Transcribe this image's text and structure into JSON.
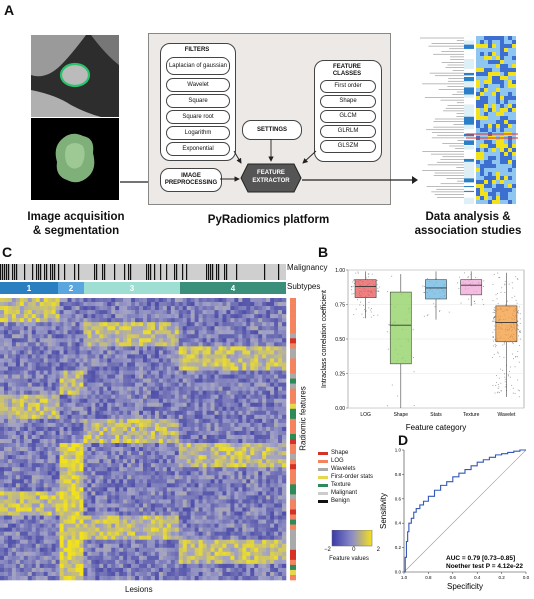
{
  "panel_letters": {
    "a": "A",
    "b": "B",
    "c": "C",
    "d": "D"
  },
  "panel_a": {
    "image_caption": [
      "Image acquisition",
      "& segmentation"
    ],
    "platform_caption": "PyRadiomics platform",
    "analysis_caption": [
      "Data analysis &",
      "association studies"
    ],
    "filters_title": "FILTERS",
    "filters": [
      "Laplacian of gaussian",
      "Wavelet",
      "Square",
      "Square root",
      "Logarithm",
      "Exponential"
    ],
    "feature_classes_title": [
      "FEATURE",
      "CLASSES"
    ],
    "feature_classes": [
      "First order",
      "Shape",
      "GLCM",
      "GLRLM",
      "GLSZM"
    ],
    "settings": "SETTINGS",
    "image_preprocessing": [
      "IMAGE",
      "PREPROCESSING"
    ],
    "feature_extractor": [
      "FEATURE",
      "EXTRACTOR"
    ]
  },
  "panel_c": {
    "malignancy_label": "Malignancy",
    "subtypes_label": "Subtypes",
    "subtypes": [
      "1",
      "2",
      "3",
      "4"
    ],
    "side_label": "Radiomic features",
    "x_label": "Lesions",
    "legend": [
      {
        "label": "Shape",
        "color": "#d73027"
      },
      {
        "label": "LOG",
        "color": "#f4845f"
      },
      {
        "label": "Wavelets",
        "color": "#aaaaaa"
      },
      {
        "label": "First-order stats",
        "color": "#e6d84a"
      },
      {
        "label": "Texture",
        "color": "#2e8b57"
      },
      {
        "label": "Malignant",
        "color": "#cccccc"
      },
      {
        "label": "Benign",
        "color": "#111111"
      }
    ],
    "colorbar_ticks": [
      "−2",
      "0",
      "2"
    ],
    "colorbar_label": "Feature values"
  },
  "chart_data": [
    {
      "type": "box",
      "title": "",
      "ylabel": "Intraclass correlation coefficient",
      "xlabel": "Feature category",
      "ylim": [
        0,
        1
      ],
      "yticks": [
        "0.00",
        "0.25",
        "0.50",
        "0.75",
        "1.00"
      ],
      "categories": [
        "LOG",
        "Shape",
        "Stats",
        "Texture",
        "Wavelet"
      ],
      "colors": [
        "#e8585a",
        "#8ed060",
        "#6ab4e0",
        "#f2a6d8",
        "#f39a3a"
      ],
      "boxes": [
        {
          "q1": 0.8,
          "median": 0.88,
          "q3": 0.93,
          "low": 0.65,
          "high": 0.99
        },
        {
          "q1": 0.32,
          "median": 0.6,
          "q3": 0.84,
          "low": 0.0,
          "high": 0.97
        },
        {
          "q1": 0.79,
          "median": 0.87,
          "q3": 0.93,
          "low": 0.64,
          "high": 0.99
        },
        {
          "q1": 0.82,
          "median": 0.89,
          "q3": 0.93,
          "low": 0.74,
          "high": 0.99
        },
        {
          "q1": 0.48,
          "median": 0.62,
          "q3": 0.74,
          "low": 0.08,
          "high": 0.98
        }
      ]
    },
    {
      "type": "line",
      "title": "",
      "xlabel": "Specificity",
      "ylabel": "Sensitivity",
      "xlim": [
        1.0,
        0.0
      ],
      "ylim": [
        0.0,
        1.0
      ],
      "xticks": [
        "1.0",
        "0.8",
        "0.6",
        "0.4",
        "0.2",
        "0.0"
      ],
      "yticks": [
        "0.0",
        "0.2",
        "0.4",
        "0.6",
        "0.8",
        "1.0"
      ],
      "annotations": [
        "AUC = 0.79 [0.73–0.85]",
        "Noether test P = 4.12e-22"
      ],
      "series": [
        {
          "x": [
            1.0,
            0.99,
            0.98,
            0.97,
            0.96,
            0.94,
            0.92,
            0.9,
            0.87,
            0.84,
            0.8,
            0.75,
            0.7,
            0.65,
            0.6,
            0.55,
            0.5,
            0.45,
            0.4,
            0.35,
            0.3,
            0.25,
            0.2,
            0.15,
            0.1,
            0.05,
            0.0
          ],
          "y": [
            0.0,
            0.12,
            0.25,
            0.33,
            0.4,
            0.44,
            0.49,
            0.52,
            0.55,
            0.58,
            0.62,
            0.67,
            0.71,
            0.74,
            0.78,
            0.81,
            0.84,
            0.87,
            0.9,
            0.92,
            0.94,
            0.96,
            0.97,
            0.98,
            0.99,
            1.0,
            1.0
          ]
        }
      ]
    }
  ]
}
